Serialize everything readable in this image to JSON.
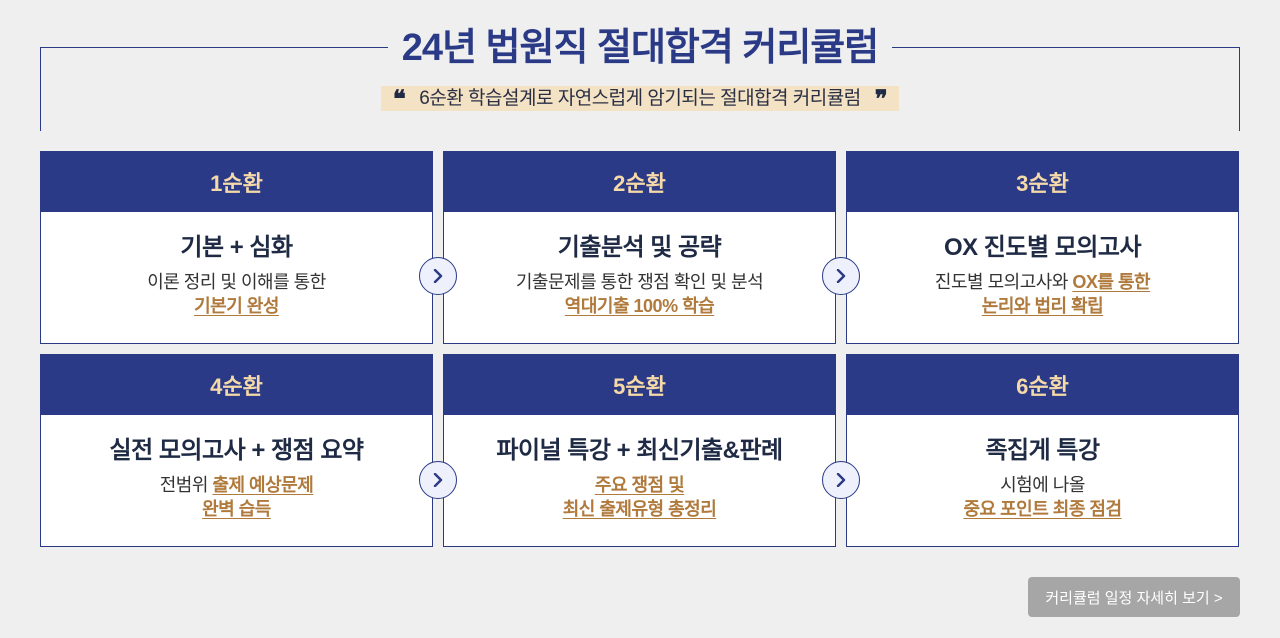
{
  "header": {
    "title": "24년 법원직 절대합격 커리큘럼",
    "subtitle": "6순환 학습설계로 자연스럽게 암기되는 절대합격 커리큘럼",
    "quote_open": "❝",
    "quote_close": "❞"
  },
  "cycles": [
    {
      "label": "1순환",
      "title": "기본 + 심화",
      "desc_plain": "이론 정리 및 이해를 통한",
      "desc_highlight": "기본기 완성"
    },
    {
      "label": "2순환",
      "title": "기출분석 및 공략",
      "desc_plain": "기출문제를 통한 쟁점 확인 및 분석",
      "desc_highlight": "역대기출 100% 학습"
    },
    {
      "label": "3순환",
      "title": "OX 진도별 모의고사",
      "desc_plain": "진도별 모의고사와",
      "desc_highlight_inline": "OX를 통한",
      "desc_highlight": "논리와 법리 확립"
    },
    {
      "label": "4순환",
      "title": "실전 모의고사 + 쟁점 요약",
      "desc_plain": "전범위",
      "desc_highlight_inline": "출제 예상문제",
      "desc_highlight": "완벽 습득"
    },
    {
      "label": "5순환",
      "title": "파이널 특강 + 최신기출&판례",
      "desc_highlight_line1": "주요 쟁점 및",
      "desc_highlight": "최신 출제유형 총정리"
    },
    {
      "label": "6순환",
      "title": "족집게 특강",
      "desc_plain": "시험에 나올",
      "desc_highlight": "중요 포인트 최종 점검"
    }
  ],
  "icons": {
    "next": "chevron-right-icon"
  },
  "cta": {
    "label": "커리큘럼 일정 자세히 보기 >"
  },
  "colors": {
    "navy": "#2b3a86",
    "gold": "#b07a3c",
    "header_text": "#f5d9a8",
    "subtitle_bg": "#f3e2c4",
    "button_bg": "#a6a6a6"
  }
}
